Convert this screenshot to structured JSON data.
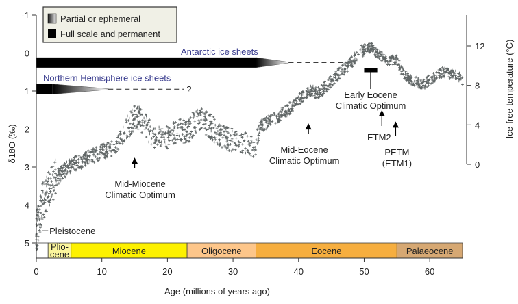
{
  "chart_data": {
    "type": "scatter",
    "title": "",
    "xlabel": "Age (millions of years ago)",
    "ylabel_left": "δ18O (‰)",
    "ylabel_right": "Ice-free temperature (°C)",
    "xlim": [
      0,
      65
    ],
    "ylim_left": [
      5,
      -1
    ],
    "ylim_right_ticks": [
      0,
      4,
      8,
      12
    ],
    "x_ticks": [
      0,
      10,
      20,
      30,
      40,
      50,
      60
    ],
    "y_left_ticks": [
      -1,
      0,
      1,
      2,
      3,
      4,
      5
    ],
    "series": [
      {
        "color": "#4f5555",
        "marker": "plus",
        "trend": [
          {
            "x": 0.0,
            "y": 4.8
          },
          {
            "x": 0.5,
            "y": 4.3
          },
          {
            "x": 1.0,
            "y": 3.9
          },
          {
            "x": 2.0,
            "y": 3.6
          },
          {
            "x": 3.0,
            "y": 3.3
          },
          {
            "x": 4.0,
            "y": 3.15
          },
          {
            "x": 5.0,
            "y": 3.0
          },
          {
            "x": 6.0,
            "y": 2.9
          },
          {
            "x": 8.0,
            "y": 2.75
          },
          {
            "x": 10.0,
            "y": 2.6
          },
          {
            "x": 12.0,
            "y": 2.5
          },
          {
            "x": 13.5,
            "y": 2.05
          },
          {
            "x": 15.0,
            "y": 1.7
          },
          {
            "x": 16.0,
            "y": 1.75
          },
          {
            "x": 17.0,
            "y": 2.0
          },
          {
            "x": 18.0,
            "y": 2.2
          },
          {
            "x": 20.0,
            "y": 2.2
          },
          {
            "x": 22.0,
            "y": 2.05
          },
          {
            "x": 23.0,
            "y": 2.1
          },
          {
            "x": 24.0,
            "y": 1.85
          },
          {
            "x": 25.0,
            "y": 1.75
          },
          {
            "x": 26.0,
            "y": 1.85
          },
          {
            "x": 27.0,
            "y": 2.0
          },
          {
            "x": 28.0,
            "y": 2.2
          },
          {
            "x": 30.0,
            "y": 2.3
          },
          {
            "x": 32.0,
            "y": 2.35
          },
          {
            "x": 33.5,
            "y": 2.55
          },
          {
            "x": 34.0,
            "y": 1.95
          },
          {
            "x": 35.0,
            "y": 1.85
          },
          {
            "x": 36.0,
            "y": 1.75
          },
          {
            "x": 38.0,
            "y": 1.55
          },
          {
            "x": 40.0,
            "y": 1.25
          },
          {
            "x": 41.5,
            "y": 1.0
          },
          {
            "x": 43.0,
            "y": 1.05
          },
          {
            "x": 45.0,
            "y": 0.75
          },
          {
            "x": 47.0,
            "y": 0.4
          },
          {
            "x": 48.0,
            "y": 0.25
          },
          {
            "x": 49.0,
            "y": 0.05
          },
          {
            "x": 50.0,
            "y": -0.1
          },
          {
            "x": 51.0,
            "y": -0.15
          },
          {
            "x": 52.0,
            "y": 0.0
          },
          {
            "x": 53.0,
            "y": 0.15
          },
          {
            "x": 54.0,
            "y": 0.2
          },
          {
            "x": 55.0,
            "y": 0.2
          },
          {
            "x": 56.0,
            "y": 0.55
          },
          {
            "x": 57.0,
            "y": 0.7
          },
          {
            "x": 58.0,
            "y": 0.75
          },
          {
            "x": 59.0,
            "y": 0.85
          },
          {
            "x": 60.0,
            "y": 0.7
          },
          {
            "x": 62.0,
            "y": 0.5
          },
          {
            "x": 63.0,
            "y": 0.55
          },
          {
            "x": 64.0,
            "y": 0.55
          },
          {
            "x": 65.0,
            "y": 0.7
          }
        ]
      }
    ],
    "legend": {
      "placement": "top-left",
      "entries": [
        {
          "label": "Partial or ephemeral",
          "style": "gradient"
        },
        {
          "label": "Full scale and permanent",
          "style": "solid"
        }
      ]
    },
    "ice_sheets": [
      {
        "label": "Antarctic ice sheets",
        "y": 0.25,
        "solid": [
          0,
          33.5
        ],
        "ephemeral": [
          33.5,
          38.5
        ],
        "dashed": [
          38.5,
          47
        ]
      },
      {
        "label": "Northern Hemisphere ice sheets",
        "y": 0.95,
        "solid": [
          0,
          2.5
        ],
        "ephemeral": [
          2.5,
          11
        ],
        "dashed": [
          11,
          22.5
        ],
        "dashed_end_label": "?"
      }
    ],
    "annotations": [
      {
        "text": [
          "Mid-Miocene",
          "Climatic Optimum"
        ],
        "x": 15,
        "arrow_tip_y": 2.75
      },
      {
        "text": [
          "Mid-Eocene",
          "Climatic Optimum"
        ],
        "x": 41.5,
        "arrow_tip_y": 1.85
      },
      {
        "text": [
          "Early Eocene",
          "Climatic Optimum"
        ],
        "x": 51,
        "bar": [
          50,
          52
        ],
        "bar_y": 0.45
      },
      {
        "text": [
          "ETM2"
        ],
        "x": 52.7,
        "arrow_tip_y": 1.5
      },
      {
        "text": [
          "PETM",
          "(ETM1)"
        ],
        "x": 54.8,
        "arrow_tip_y": 1.8
      }
    ],
    "epochs": [
      {
        "name": "Pleistocene",
        "start": 0,
        "end": 1.8,
        "color": "#ffffff"
      },
      {
        "name": "Plio-",
        "name2": "cene",
        "start": 1.8,
        "end": 5.3,
        "color": "#fbf59c"
      },
      {
        "name": "Miocene",
        "start": 5.3,
        "end": 23,
        "color": "#fdf100"
      },
      {
        "name": "Oligocene",
        "start": 23,
        "end": 33.5,
        "color": "#fdc68a"
      },
      {
        "name": "Eocene",
        "start": 33.5,
        "end": 55,
        "color": "#f6ae3f"
      },
      {
        "name": "Palaeocene",
        "start": 55,
        "end": 65,
        "color": "#d6a873"
      }
    ]
  }
}
